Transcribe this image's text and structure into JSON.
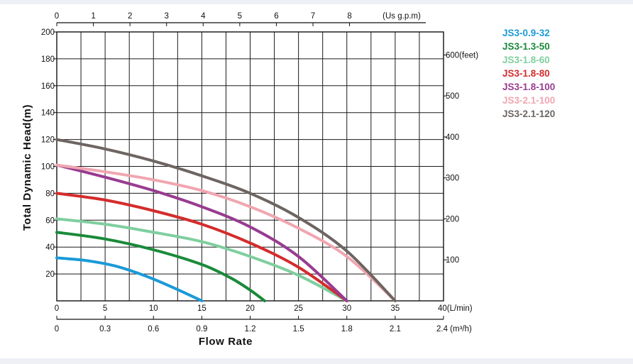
{
  "chart_data": {
    "type": "line",
    "title": "",
    "xlabel": "Flow Rate",
    "ylabel": "Total Dynamic Head(m)",
    "xlim_lpm": [
      0,
      40
    ],
    "ylim": [
      0,
      200
    ],
    "grid": true,
    "legend_position": "right",
    "axes": {
      "left": {
        "ticks": [
          "200",
          "180",
          "160",
          "140",
          "120",
          "100",
          "80",
          "60",
          "40",
          "20"
        ],
        "values": [
          200,
          180,
          160,
          140,
          120,
          100,
          80,
          60,
          40,
          20
        ]
      },
      "right": {
        "ticks": [
          "600(feet)",
          "500",
          "400",
          "300",
          "200",
          "100"
        ],
        "values": [
          600,
          500,
          400,
          300,
          200,
          100
        ],
        "unit_m_per_ft": 0.3048
      },
      "top": {
        "ticks": [
          "0",
          "1",
          "2",
          "3",
          "4",
          "5",
          "6",
          "7",
          "8"
        ],
        "values": [
          0,
          1,
          2,
          3,
          4,
          5,
          6,
          7,
          8
        ],
        "unit_label": "(Us g.p.m)",
        "lpm_per_gpm": 3.785
      },
      "bottom1": {
        "ticks": [
          "0",
          "5",
          "10",
          "15",
          "20",
          "25",
          "30",
          "35",
          "40(L/min)"
        ],
        "values": [
          0,
          5,
          10,
          15,
          20,
          25,
          30,
          35,
          40
        ]
      },
      "bottom2": {
        "ticks": [
          "0",
          "0.3",
          "0.6",
          "0.9",
          "1.2",
          "1.5",
          "1.8",
          "2.1",
          "2.4 (m³/h)"
        ],
        "values": [
          0,
          0.3,
          0.6,
          0.9,
          1.2,
          1.5,
          1.8,
          2.1,
          2.4
        ]
      }
    },
    "series": [
      {
        "name": "JS3-0.9-32",
        "color": "#1a9ad8",
        "x": [
          0,
          3,
          6,
          9,
          12,
          15
        ],
        "y": [
          32,
          30,
          26,
          19,
          10,
          0
        ]
      },
      {
        "name": "JS3-1.3-50",
        "color": "#1a8a3a",
        "x": [
          0,
          5,
          10,
          15,
          18,
          20,
          21.5
        ],
        "y": [
          51,
          46,
          38,
          27,
          17,
          8,
          0
        ]
      },
      {
        "name": "JS3-1.8-60",
        "color": "#7fcf9f",
        "x": [
          0,
          5,
          10,
          15,
          20,
          25,
          30
        ],
        "y": [
          61,
          57,
          51,
          44,
          33,
          19,
          0
        ]
      },
      {
        "name": "JS3-1.8-80",
        "color": "#d42c2c",
        "x": [
          0,
          5,
          10,
          15,
          20,
          25,
          30
        ],
        "y": [
          80,
          75,
          67,
          57,
          43,
          25,
          0
        ]
      },
      {
        "name": "JS3-1.8-100",
        "color": "#983c90",
        "x": [
          0,
          5,
          10,
          15,
          20,
          25,
          30
        ],
        "y": [
          101,
          92,
          82,
          70,
          55,
          33,
          0
        ]
      },
      {
        "name": "JS3-2.1-100",
        "color": "#f0a6b0",
        "x": [
          0,
          5,
          10,
          15,
          20,
          25,
          30,
          35
        ],
        "y": [
          101,
          96,
          90,
          82,
          70,
          54,
          33,
          0
        ]
      },
      {
        "name": "JS3-2.1-120",
        "color": "#6d6562",
        "x": [
          0,
          5,
          10,
          15,
          20,
          25,
          30,
          35
        ],
        "y": [
          120,
          113,
          104,
          93,
          80,
          62,
          37,
          0
        ]
      }
    ]
  }
}
